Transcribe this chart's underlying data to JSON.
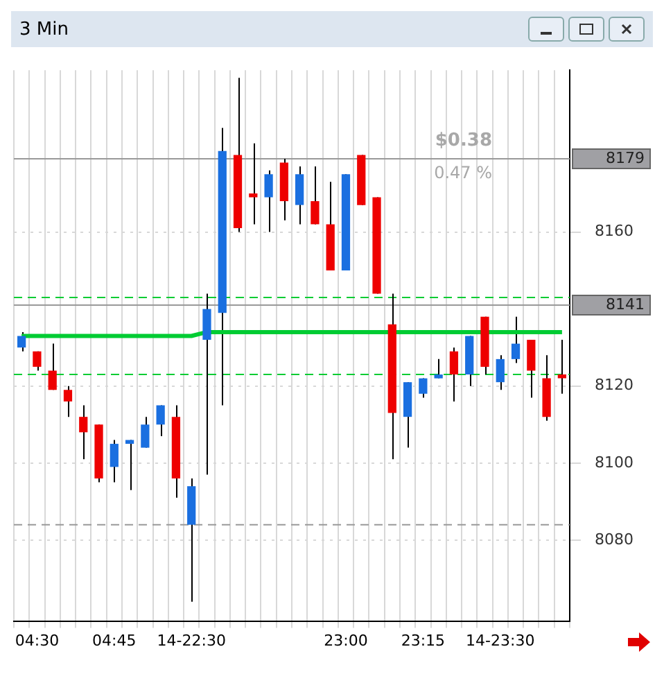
{
  "chart_data": {
    "type": "candlestick",
    "title": "3 Min",
    "categories": [
      null,
      "04:30",
      null,
      null,
      null,
      null,
      "04:45",
      null,
      null,
      null,
      null,
      "14-22:30",
      null,
      null,
      null,
      null,
      null,
      null,
      null,
      null,
      null,
      "23:00",
      null,
      null,
      null,
      null,
      "23:15",
      null,
      null,
      null,
      null,
      "14-23:30",
      null,
      null,
      null,
      null
    ],
    "ohlc": [
      [
        8130,
        8134,
        8129,
        8133
      ],
      [
        8129,
        8129,
        8124,
        8125
      ],
      [
        8124,
        8131,
        8119,
        8119
      ],
      [
        8119,
        8120,
        8112,
        8116
      ],
      [
        8112,
        8115,
        8101,
        8108
      ],
      [
        8110,
        8110,
        8095,
        8096
      ],
      [
        8099,
        8106,
        8095,
        8105
      ],
      [
        8105,
        8106,
        8093,
        8106
      ],
      [
        8104,
        8112,
        8104,
        8110
      ],
      [
        8110,
        8115,
        8107,
        8115
      ],
      [
        8112,
        8115,
        8091,
        8096
      ],
      [
        8084,
        8096,
        8064,
        8094
      ],
      [
        8132,
        8144,
        8097,
        8140
      ],
      [
        8139,
        8187,
        8115,
        8181
      ],
      [
        8180,
        8200,
        8160,
        8161
      ],
      [
        8170,
        8183,
        8162,
        8169
      ],
      [
        8169,
        8176,
        8160,
        8175
      ],
      [
        8178,
        8179,
        8163,
        8168
      ],
      [
        8167,
        8177,
        8162,
        8175
      ],
      [
        8168,
        8177,
        8162,
        8162
      ],
      [
        8162,
        8173,
        8150,
        8150
      ],
      [
        8150,
        8175,
        8150,
        8175
      ],
      [
        8180,
        8180,
        8167,
        8167
      ],
      [
        8169,
        8169,
        8144,
        8144
      ],
      [
        8136,
        8144,
        8101,
        8113
      ],
      [
        8112,
        8121,
        8104,
        8121
      ],
      [
        8118,
        8122,
        8117,
        8122
      ],
      [
        8122,
        8127,
        8122,
        8123
      ],
      [
        8129,
        8130,
        8116,
        8123
      ],
      [
        8123,
        8133,
        8120,
        8133
      ],
      [
        8138,
        8138,
        8123,
        8125
      ],
      [
        8121,
        8128,
        8119,
        8127
      ],
      [
        8127,
        8138,
        8126,
        8131
      ],
      [
        8132,
        8132,
        8117,
        8124
      ],
      [
        8122,
        8128,
        8111,
        8112
      ],
      [
        8123,
        8132,
        8118,
        8122
      ]
    ],
    "colors": [
      "#1a6fe0",
      "#ee0000",
      "#ee0000",
      "#ee0000",
      "#ee0000",
      "#ee0000",
      "#1a6fe0",
      "#1a6fe0",
      "#1a6fe0",
      "#1a6fe0",
      "#ee0000",
      "#1a6fe0",
      "#1a6fe0",
      "#1a6fe0",
      "#ee0000",
      "#ee0000",
      "#1a6fe0",
      "#ee0000",
      "#1a6fe0",
      "#ee0000",
      "#ee0000",
      "#1a6fe0",
      "#ee0000",
      "#ee0000",
      "#ee0000",
      "#1a6fe0",
      "#1a6fe0",
      "#1a6fe0",
      "#ee0000",
      "#1a6fe0",
      "#ee0000",
      "#1a6fe0",
      "#1a6fe0",
      "#ee0000",
      "#ee0000",
      "#ee0000"
    ],
    "series": [
      {
        "type": "line",
        "color": "#00cc33",
        "values": [
          8133,
          8133,
          8133,
          8133,
          8133,
          8133,
          8133,
          8133,
          8133,
          8133,
          8133,
          8133,
          8134,
          8134,
          8134,
          8134,
          8134,
          8134,
          8134,
          8134,
          8134,
          8134,
          8134,
          8134,
          8134,
          8134,
          8134,
          8134,
          8134,
          8134,
          8134,
          8134,
          8134,
          8134,
          8134,
          8134
        ]
      }
    ],
    "ylim": [
      8059,
      8202
    ],
    "yticks": [
      8080,
      8100,
      8120,
      8160
    ],
    "ref_lines": [
      {
        "axis": "y",
        "value": 8179,
        "label": "8179",
        "color": "#999999",
        "line_style": "solid"
      },
      {
        "axis": "y",
        "value": 8141,
        "label": "8141",
        "color": "#999999",
        "line_style": "solid"
      },
      {
        "axis": "y",
        "value": 8143,
        "color": "#00cc33",
        "line_style": "dashed"
      },
      {
        "axis": "y",
        "value": 8123,
        "color": "#00cc33",
        "line_style": "dashed"
      },
      {
        "axis": "y",
        "value": 8084,
        "color": "#999999",
        "line_style": "dashed"
      }
    ],
    "annotations": [
      "$0.38",
      "0.47 %"
    ],
    "grid": true,
    "legend": false
  }
}
